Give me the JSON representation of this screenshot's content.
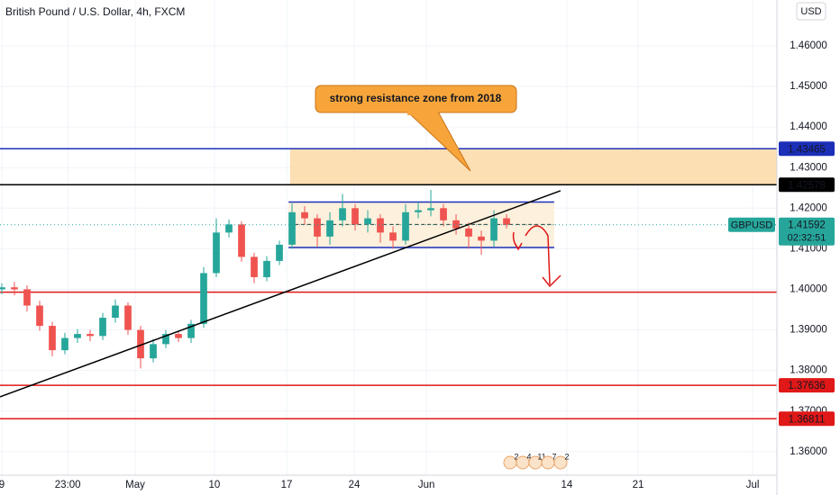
{
  "chart_data": {
    "type": "candlestick",
    "title": "British Pound / U.S. Dollar, 4h, FXCM",
    "currency": "USD",
    "x": [
      0,
      4,
      8,
      12,
      16,
      20,
      24,
      28,
      32,
      36,
      40,
      44,
      48,
      52,
      56,
      60,
      64,
      68,
      72,
      76,
      80,
      84,
      88,
      92,
      96,
      100,
      104,
      108,
      112,
      116,
      120,
      124,
      128,
      132,
      136,
      140,
      144,
      148,
      152,
      156,
      160
    ],
    "open": [
      1.4,
      1.4005,
      1.4,
      1.396,
      1.391,
      1.385,
      1.388,
      1.389,
      1.3885,
      1.393,
      1.396,
      1.39,
      1.383,
      1.3865,
      1.389,
      1.388,
      1.3915,
      1.404,
      1.414,
      1.416,
      1.408,
      1.403,
      1.407,
      1.411,
      1.419,
      1.4175,
      1.413,
      1.417,
      1.42,
      1.416,
      1.4175,
      1.414,
      1.412,
      1.419,
      1.4195,
      1.42,
      1.417,
      1.415,
      1.413,
      1.412,
      1.4175
    ],
    "high": [
      1.4015,
      1.4018,
      1.401,
      1.3972,
      1.392,
      1.3893,
      1.3902,
      1.39,
      1.3942,
      1.3975,
      1.3968,
      1.391,
      1.3878,
      1.39,
      1.3898,
      1.3925,
      1.4055,
      1.4175,
      1.4172,
      1.4168,
      1.409,
      1.4082,
      1.412,
      1.4212,
      1.4205,
      1.4185,
      1.419,
      1.4235,
      1.421,
      1.4195,
      1.4185,
      1.4155,
      1.421,
      1.4215,
      1.4245,
      1.421,
      1.4185,
      1.4165,
      1.4145,
      1.4195,
      1.4185
    ],
    "low": [
      1.3988,
      1.3985,
      1.3945,
      1.3898,
      1.3835,
      1.384,
      1.3868,
      1.3872,
      1.3875,
      1.3918,
      1.3888,
      1.3805,
      1.382,
      1.3855,
      1.387,
      1.3868,
      1.3905,
      1.403,
      1.4128,
      1.4068,
      1.4015,
      1.402,
      1.406,
      1.41,
      1.416,
      1.4105,
      1.411,
      1.4155,
      1.4145,
      1.414,
      1.4115,
      1.41,
      1.411,
      1.4175,
      1.418,
      1.4155,
      1.4135,
      1.41,
      1.4085,
      1.4105,
      1.415
    ],
    "close": [
      1.4005,
      1.4,
      1.396,
      1.391,
      1.385,
      1.388,
      1.389,
      1.3885,
      1.393,
      1.396,
      1.39,
      1.383,
      1.3865,
      1.389,
      1.388,
      1.3915,
      1.404,
      1.414,
      1.416,
      1.408,
      1.403,
      1.407,
      1.411,
      1.419,
      1.4175,
      1.413,
      1.417,
      1.42,
      1.416,
      1.4175,
      1.414,
      1.412,
      1.419,
      1.4195,
      1.42,
      1.417,
      1.415,
      1.413,
      1.412,
      1.4175,
      1.4159
    ],
    "up_color": "#26a69a",
    "down_color": "#ef5350",
    "xlim": [
      -0.57,
      245.7
    ],
    "xticks": [
      {
        "value": 0,
        "label": "9"
      },
      {
        "value": 20.9,
        "label": "23:00"
      },
      {
        "value": 42.3,
        "label": "May"
      },
      {
        "value": 67.4,
        "label": "10"
      },
      {
        "value": 90.3,
        "label": "17"
      },
      {
        "value": 111.7,
        "label": "24"
      },
      {
        "value": 134.6,
        "label": "Jun"
      },
      {
        "value": 179.1,
        "label": "14"
      },
      {
        "value": 201.7,
        "label": "21"
      },
      {
        "value": 238,
        "label": "Jul"
      }
    ],
    "ylim": [
      1.3542,
      1.4713
    ],
    "yticks": [
      {
        "value": 1.36,
        "label": "1.36000"
      },
      {
        "value": 1.37,
        "label": "1.37000"
      },
      {
        "value": 1.38,
        "label": "1.38000"
      },
      {
        "value": 1.39,
        "label": "1.39000"
      },
      {
        "value": 1.4,
        "label": "1.40000"
      },
      {
        "value": 1.41,
        "label": "1.41000"
      },
      {
        "value": 1.42,
        "label": "1.42000"
      },
      {
        "value": 1.43,
        "label": "1.43000"
      },
      {
        "value": 1.44,
        "label": "1.44000"
      },
      {
        "value": 1.45,
        "label": "1.45000"
      },
      {
        "value": 1.46,
        "label": "1.46000"
      }
    ],
    "grid": true,
    "hlines": [
      {
        "value": 1.43465,
        "color": "#1c2fb8",
        "labeled": true
      },
      {
        "value": 1.42578,
        "color": "#000000",
        "labeled": true
      },
      {
        "value": 1.3993,
        "color": "#e01818",
        "labeled": false
      },
      {
        "value": 1.37636,
        "color": "#e01818",
        "labeled": true
      },
      {
        "value": 1.36811,
        "color": "#e01818",
        "labeled": true
      }
    ],
    "last": {
      "name": "GBPUSD",
      "value": 1.41592,
      "countdown": "02:32:51",
      "color": "#26a69a"
    },
    "zone": {
      "x0": 91.4,
      "y": [
        1.42578,
        1.43465
      ],
      "color": "#fcd9a6"
    },
    "channel": {
      "x": [
        90.9,
        175.1
      ],
      "y": [
        1.4103,
        1.4215
      ],
      "mid": 1.416,
      "color": "#1c2fb8"
    },
    "trendline": {
      "x": [
        -0.57,
        177.1
      ],
      "y": [
        1.3735,
        1.4243
      ]
    },
    "annotation": "strong resistance zone from 2018",
    "events": [
      "2",
      "4",
      "11",
      "7",
      "2"
    ]
  }
}
